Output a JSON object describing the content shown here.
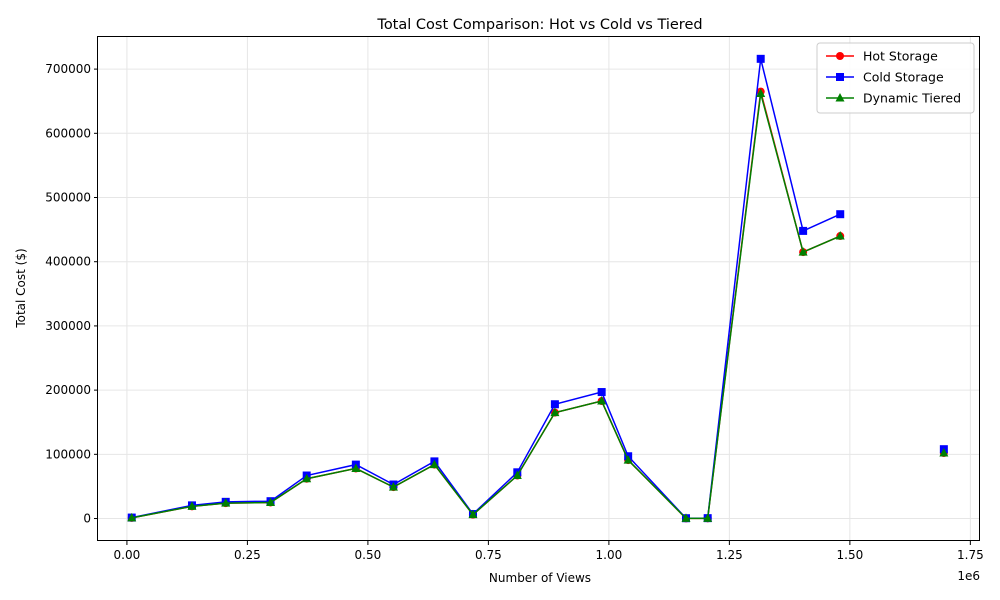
{
  "chart_data": {
    "type": "line",
    "title": "Total Cost Comparison: Hot vs Cold vs Tiered",
    "xlabel": "Number of Views",
    "ylabel": "Total Cost ($)",
    "x_offset_label": "1e6",
    "xlim": [
      -60000,
      1770000
    ],
    "ylim": [
      -35000,
      750000
    ],
    "x_ticks": [
      0,
      250000,
      500000,
      750000,
      1000000,
      1250000,
      1500000,
      1750000
    ],
    "x_tick_labels": [
      "0.00",
      "0.25",
      "0.50",
      "0.75",
      "1.00",
      "1.25",
      "1.50",
      "1.75"
    ],
    "y_ticks": [
      0,
      100000,
      200000,
      300000,
      400000,
      500000,
      600000,
      700000
    ],
    "y_tick_labels": [
      "0",
      "100000",
      "200000",
      "300000",
      "400000",
      "500000",
      "600000",
      "700000"
    ],
    "grid": true,
    "legend_position": "top-right",
    "x": [
      10000,
      135000,
      205000,
      298000,
      373000,
      475000,
      553000,
      638000,
      718000,
      810000,
      888000,
      985000,
      1040000,
      1160000,
      1205000,
      1315000,
      1403000,
      1480000,
      1695000
    ],
    "series": [
      {
        "name": "Hot Storage",
        "color": "#ff0000",
        "marker": "circle",
        "values": [
          1000,
          19000,
          24000,
          25000,
          62000,
          78000,
          49000,
          84000,
          6000,
          67000,
          165000,
          183000,
          91000,
          200,
          300,
          665000,
          415000,
          440000,
          102000
        ]
      },
      {
        "name": "Cold Storage",
        "color": "#0000ff",
        "marker": "square",
        "values": [
          1500,
          20500,
          26000,
          27000,
          67000,
          84000,
          53000,
          89000,
          7000,
          72000,
          178000,
          197000,
          97000,
          500,
          600,
          716000,
          448000,
          474000,
          108000
        ]
      },
      {
        "name": "Dynamic Tiered",
        "color": "#008000",
        "marker": "triangle",
        "values": [
          1000,
          19000,
          24000,
          25000,
          62000,
          78000,
          49000,
          84000,
          6000,
          67000,
          165000,
          183000,
          91000,
          200,
          300,
          662000,
          415000,
          440000,
          102000
        ]
      }
    ]
  }
}
